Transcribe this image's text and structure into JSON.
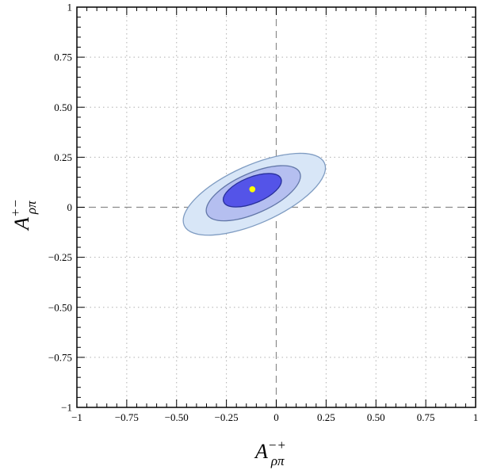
{
  "chart_data": {
    "type": "contour",
    "xlabel": {
      "base": "A",
      "sup": "−+",
      "sub": "ρπ"
    },
    "ylabel": {
      "base": "A",
      "sup": "+−",
      "sub": "ρπ"
    },
    "xlim": [
      -1,
      1
    ],
    "ylim": [
      -1,
      1
    ],
    "x_ticks": [
      -1,
      -0.75,
      -0.5,
      -0.25,
      0,
      0.25,
      0.5,
      0.75,
      1
    ],
    "x_tick_labels": [
      "−1",
      "−0.75",
      "−0.50",
      "−0.25",
      "0",
      "0.25",
      "0.50",
      "0.75",
      "1"
    ],
    "y_ticks": [
      -1,
      -0.75,
      -0.5,
      -0.25,
      0,
      0.25,
      0.5,
      0.75,
      1
    ],
    "y_tick_labels": [
      "−1",
      "−0.75",
      "−0.50",
      "−0.25",
      "0",
      "0.25",
      "0.50",
      "0.75",
      "1"
    ],
    "grid": true,
    "zero_lines": true,
    "best_fit_point": {
      "x": -0.12,
      "y": 0.09,
      "color": "#ffff00"
    },
    "contours": [
      {
        "level": "outer",
        "center": [
          -0.11,
          0.065
        ],
        "semi_major": 0.385,
        "semi_minor": 0.145,
        "angle_deg": 24,
        "fill": "#d8e6f7",
        "stroke": "#7f9cc2"
      },
      {
        "level": "middle",
        "center": [
          -0.115,
          0.07
        ],
        "semi_major": 0.255,
        "semi_minor": 0.1,
        "angle_deg": 24,
        "fill": "#b5bff0",
        "stroke": "#6277a8"
      },
      {
        "level": "inner",
        "center": [
          -0.12,
          0.085
        ],
        "semi_major": 0.155,
        "semi_minor": 0.065,
        "angle_deg": 22,
        "fill": "#5454e8",
        "stroke": "#28309a"
      }
    ],
    "colors": {
      "frame": "#000000",
      "grid": "#b0b0b0",
      "zero_line": "#8a8a8a"
    }
  }
}
